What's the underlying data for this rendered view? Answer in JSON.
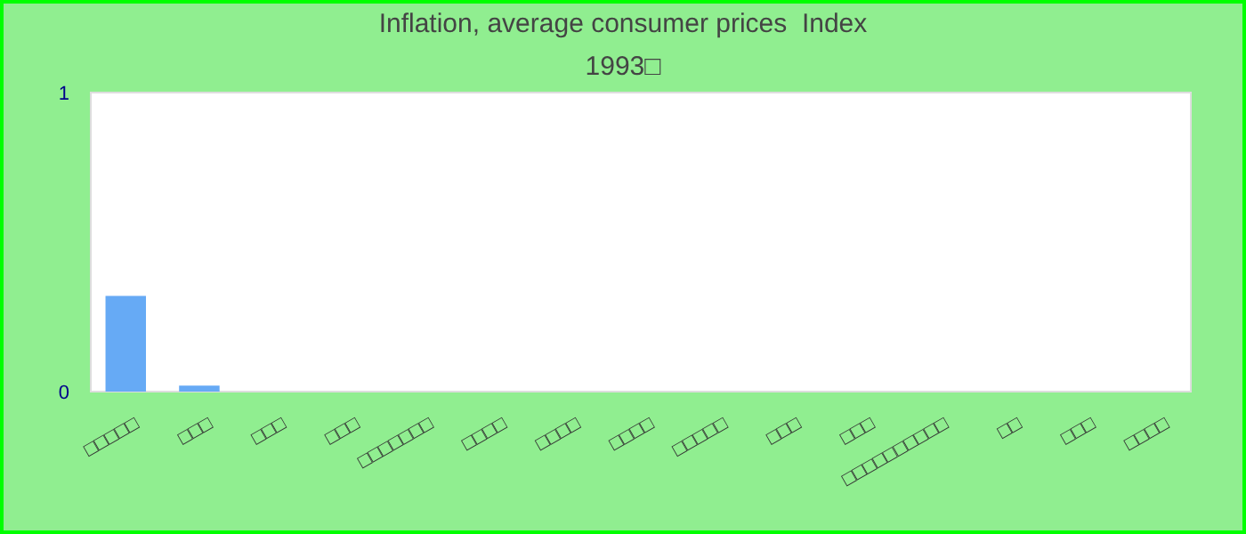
{
  "chart_data": {
    "type": "bar",
    "title": "Inflation, average consumer prices  Index",
    "subtitle": "1993□",
    "categories": [
      "□□□□□",
      "□□□",
      "□□□",
      "□□□",
      "□□□□□□□",
      "□□□□",
      "□□□□",
      "□□□□",
      "□□□□□",
      "□□□",
      "□□□",
      "□□□□□□□□□□",
      "□□",
      "□□□",
      "□□□□"
    ],
    "values": [
      0.32,
      0.02,
      0,
      0,
      0,
      0,
      0,
      0,
      0,
      0,
      0,
      0,
      0,
      0,
      0
    ],
    "color": "#66aaf5",
    "ylim": [
      0,
      1
    ],
    "yticks": [
      0,
      1
    ]
  }
}
